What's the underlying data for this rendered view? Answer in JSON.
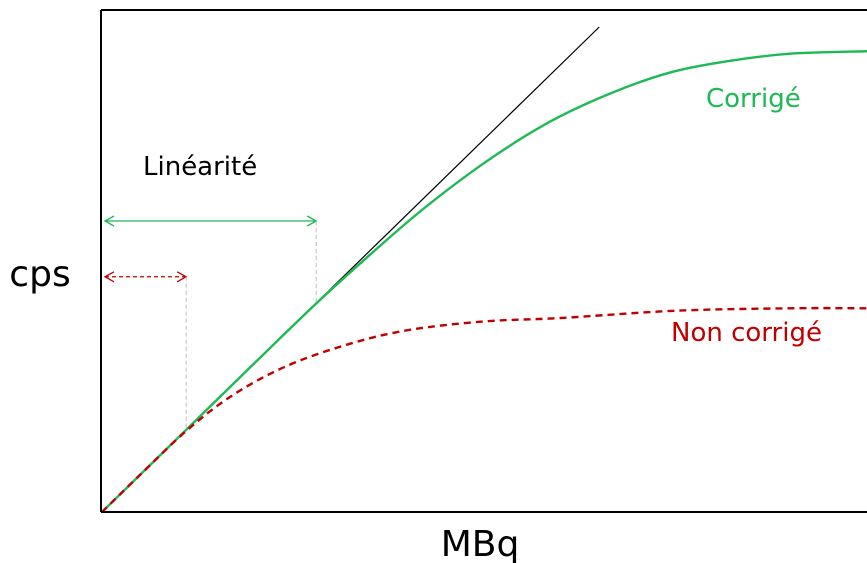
{
  "chart_data": {
    "type": "line",
    "title": "",
    "xlabel": "MBq",
    "ylabel": "cps",
    "xlim": [
      0,
      1
    ],
    "ylim": [
      0,
      1
    ],
    "grid": false,
    "legend": "none",
    "ticks": "none",
    "series": [
      {
        "key": "ideal",
        "style": "solid",
        "color": "#000000",
        "points": [
          [
            0,
            0
          ],
          [
            0.65,
            1.0
          ]
        ]
      },
      {
        "key": "corrected",
        "name": "Corrigé",
        "style": "solid",
        "color": "#1db954",
        "points": [
          [
            0,
            0
          ],
          [
            0.1,
            0.154
          ],
          [
            0.2,
            0.308
          ],
          [
            0.28,
            0.43
          ],
          [
            0.35,
            0.53
          ],
          [
            0.42,
            0.625
          ],
          [
            0.5,
            0.72
          ],
          [
            0.58,
            0.8
          ],
          [
            0.66,
            0.86
          ],
          [
            0.74,
            0.905
          ],
          [
            0.82,
            0.93
          ],
          [
            0.9,
            0.945
          ],
          [
            1.0,
            0.95
          ]
        ]
      },
      {
        "key": "uncorrected",
        "name": "Non corrigé",
        "style": "dashed",
        "color": "#c00000",
        "points": [
          [
            0,
            0
          ],
          [
            0.05,
            0.077
          ],
          [
            0.11,
            0.167
          ],
          [
            0.17,
            0.24
          ],
          [
            0.24,
            0.3
          ],
          [
            0.32,
            0.345
          ],
          [
            0.4,
            0.375
          ],
          [
            0.5,
            0.393
          ],
          [
            0.6,
            0.4
          ],
          [
            0.75,
            0.415
          ],
          [
            0.9,
            0.42
          ],
          [
            1.0,
            0.42
          ]
        ]
      }
    ],
    "annotations": [
      {
        "key": "linearity-corrected",
        "text": "Linéarité",
        "color": "#1db954",
        "style": "solid",
        "x_from": 0,
        "x_to": 0.28,
        "y": 0.6
      },
      {
        "key": "linearity-uncorrected",
        "text": "",
        "color": "#c00000",
        "style": "dashed",
        "x_from": 0,
        "x_to": 0.11,
        "y": 0.485
      }
    ]
  }
}
